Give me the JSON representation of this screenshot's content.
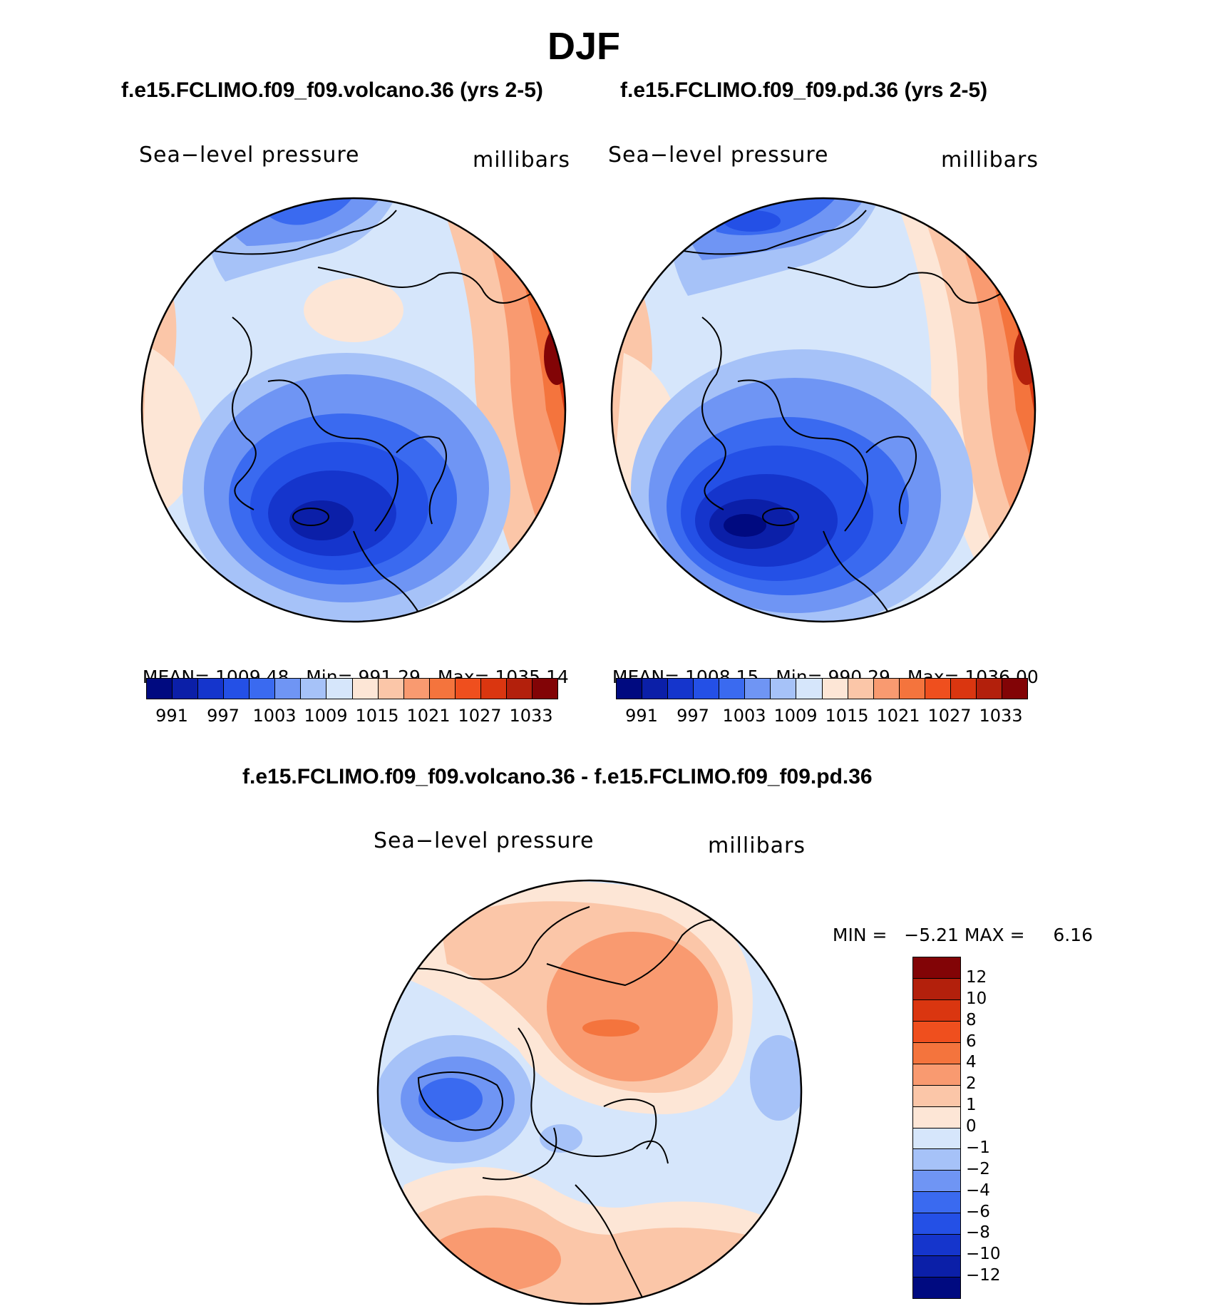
{
  "page": {
    "title": "DJF",
    "variable_label": "Sea−level pressure",
    "units_label": "millibars"
  },
  "panels": [
    {
      "id": "volcano",
      "header": "f.e15.FCLIMO.f09_f09.volcano.36 (yrs 2-5)",
      "variable": "Sea−level pressure",
      "units": "millibars",
      "stats": {
        "mean_label": "MEAN=",
        "mean": "1009.48",
        "min_label": "Min=",
        "min": "991.29",
        "max_label": "Max=",
        "max": "1035.14"
      }
    },
    {
      "id": "pd",
      "header": "f.e15.FCLIMO.f09_f09.pd.36 (yrs 2-5)",
      "variable": "Sea−level pressure",
      "units": "millibars",
      "stats": {
        "mean_label": "MEAN=",
        "mean": "1008.15",
        "min_label": "Min=",
        "min": "990.29",
        "max_label": "Max=",
        "max": "1036.00"
      }
    }
  ],
  "diff_panel": {
    "header": "f.e15.FCLIMO.f09_f09.volcano.36 - f.e15.FCLIMO.f09_f09.pd.36",
    "variable": "Sea−level pressure",
    "units": "millibars",
    "stats": {
      "min_label": "MIN =",
      "min": "−5.21",
      "max_label": "MAX =",
      "max": "6.16"
    }
  },
  "colorbars": {
    "absolute": {
      "colors": [
        "#000a80",
        "#0b1fa8",
        "#1535cc",
        "#2450e6",
        "#3a6af0",
        "#6f95f4",
        "#a6c2f8",
        "#d6e6fb",
        "#fde6d6",
        "#fbc6a8",
        "#f99a70",
        "#f4743d",
        "#ef4f1e",
        "#da3610",
        "#b3200c",
        "#820406"
      ],
      "tick_labels": [
        "991",
        "997",
        "1003",
        "1009",
        "1015",
        "1021",
        "1027",
        "1033"
      ]
    },
    "difference": {
      "colors": [
        "#820406",
        "#b3200c",
        "#da3610",
        "#ef4f1e",
        "#f4743d",
        "#f99a70",
        "#fbc6a8",
        "#fde6d6",
        "#d6e6fb",
        "#a6c2f8",
        "#6f95f4",
        "#3a6af0",
        "#2450e6",
        "#1535cc",
        "#0b1fa8",
        "#000a80"
      ],
      "tick_labels": [
        "12",
        "10",
        "8",
        "6",
        "4",
        "2",
        "1",
        "0",
        "−1",
        "−2",
        "−4",
        "−6",
        "−8",
        "−10",
        "−12"
      ]
    }
  }
}
